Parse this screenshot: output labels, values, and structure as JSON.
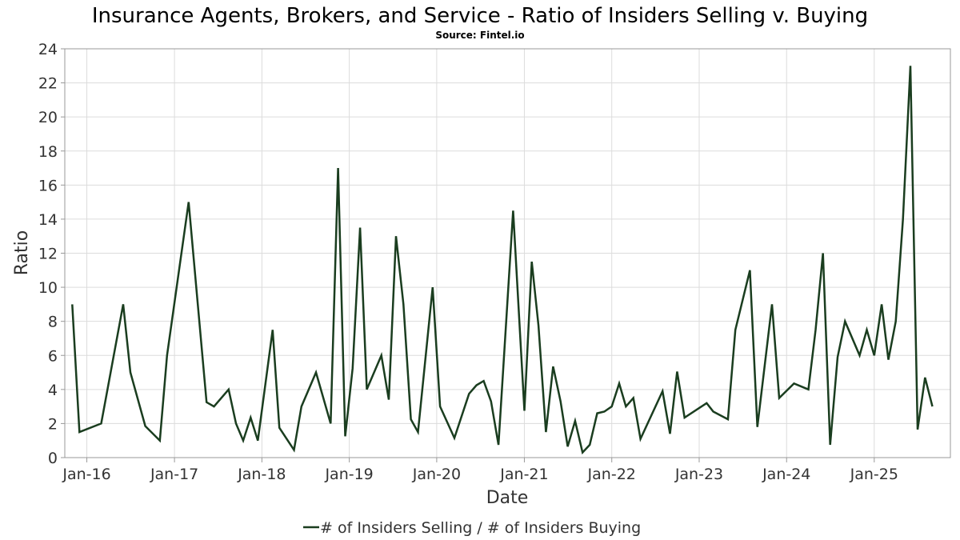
{
  "chart_data": {
    "type": "line",
    "title": "Insurance Agents, Brokers, and Service - Ratio of Insiders Selling v. Buying",
    "subtitle": "Source: Fintel.io",
    "xlabel": "Date",
    "ylabel": "Ratio",
    "ylim": [
      0,
      24
    ],
    "yticks": [
      0,
      2,
      4,
      6,
      8,
      10,
      12,
      14,
      16,
      18,
      20,
      22,
      24
    ],
    "xlim": [
      "2015-10-01",
      "2025-11-15"
    ],
    "xticks": [
      {
        "date": "2016-01-01",
        "label": "Jan-16"
      },
      {
        "date": "2017-01-01",
        "label": "Jan-17"
      },
      {
        "date": "2018-01-01",
        "label": "Jan-18"
      },
      {
        "date": "2019-01-01",
        "label": "Jan-19"
      },
      {
        "date": "2020-01-01",
        "label": "Jan-20"
      },
      {
        "date": "2021-01-01",
        "label": "Jan-21"
      },
      {
        "date": "2022-01-01",
        "label": "Jan-22"
      },
      {
        "date": "2023-01-01",
        "label": "Jan-23"
      },
      {
        "date": "2024-01-01",
        "label": "Jan-24"
      },
      {
        "date": "2025-01-01",
        "label": "Jan-25"
      }
    ],
    "grid": true,
    "legend_position": "bottom",
    "series": [
      {
        "name": "# of Insiders Selling / # of Insiders Buying",
        "color": "#1a3d1f",
        "points": [
          [
            "2015-11-01",
            9.0
          ],
          [
            "2015-12-01",
            1.5
          ],
          [
            "2016-03-01",
            2.0
          ],
          [
            "2016-06-01",
            9.0
          ],
          [
            "2016-07-01",
            5.0
          ],
          [
            "2016-09-01",
            1.85
          ],
          [
            "2016-11-01",
            1.0
          ],
          [
            "2016-12-01",
            6.0
          ],
          [
            "2017-03-01",
            15.0
          ],
          [
            "2017-05-15",
            3.25
          ],
          [
            "2017-06-15",
            3.0
          ],
          [
            "2017-08-15",
            4.0
          ],
          [
            "2017-09-15",
            2.0
          ],
          [
            "2017-10-15",
            1.0
          ],
          [
            "2017-11-15",
            2.35
          ],
          [
            "2017-12-15",
            1.0
          ],
          [
            "2018-02-15",
            7.5
          ],
          [
            "2018-03-15",
            1.75
          ],
          [
            "2018-05-15",
            0.45
          ],
          [
            "2018-06-15",
            3.0
          ],
          [
            "2018-08-15",
            5.0
          ],
          [
            "2018-10-15",
            2.0
          ],
          [
            "2018-11-15",
            17.0
          ],
          [
            "2018-12-15",
            1.25
          ],
          [
            "2019-01-15",
            5.25
          ],
          [
            "2019-02-15",
            13.5
          ],
          [
            "2019-03-15",
            4.0
          ],
          [
            "2019-05-15",
            6.0
          ],
          [
            "2019-06-15",
            3.4
          ],
          [
            "2019-07-15",
            13.0
          ],
          [
            "2019-08-15",
            9.0
          ],
          [
            "2019-09-15",
            2.25
          ],
          [
            "2019-10-15",
            1.5
          ],
          [
            "2019-12-15",
            10.0
          ],
          [
            "2020-01-15",
            3.0
          ],
          [
            "2020-03-15",
            1.15
          ],
          [
            "2020-05-15",
            3.75
          ],
          [
            "2020-06-15",
            4.25
          ],
          [
            "2020-07-15",
            4.5
          ],
          [
            "2020-08-15",
            3.3
          ],
          [
            "2020-09-15",
            0.75
          ],
          [
            "2020-11-15",
            14.5
          ],
          [
            "2021-01-01",
            2.75
          ],
          [
            "2021-02-01",
            11.5
          ],
          [
            "2021-03-01",
            7.75
          ],
          [
            "2021-04-01",
            1.5
          ],
          [
            "2021-05-01",
            5.35
          ],
          [
            "2021-06-01",
            3.3
          ],
          [
            "2021-07-01",
            0.65
          ],
          [
            "2021-08-01",
            2.15
          ],
          [
            "2021-09-01",
            0.3
          ],
          [
            "2021-10-01",
            0.75
          ],
          [
            "2021-11-01",
            2.6
          ],
          [
            "2021-12-01",
            2.7
          ],
          [
            "2022-01-01",
            3.0
          ],
          [
            "2022-02-01",
            4.35
          ],
          [
            "2022-03-01",
            3.0
          ],
          [
            "2022-04-01",
            3.5
          ],
          [
            "2022-05-01",
            1.1
          ],
          [
            "2022-08-01",
            3.9
          ],
          [
            "2022-09-01",
            1.4
          ],
          [
            "2022-10-01",
            5.05
          ],
          [
            "2022-11-01",
            2.35
          ],
          [
            "2023-02-01",
            3.2
          ],
          [
            "2023-03-01",
            2.7
          ],
          [
            "2023-05-01",
            2.25
          ],
          [
            "2023-06-01",
            7.5
          ],
          [
            "2023-08-01",
            11.0
          ],
          [
            "2023-09-01",
            1.8
          ],
          [
            "2023-11-01",
            9.0
          ],
          [
            "2023-12-01",
            3.5
          ],
          [
            "2024-02-01",
            4.35
          ],
          [
            "2024-04-01",
            4.0
          ],
          [
            "2024-05-01",
            7.5
          ],
          [
            "2024-06-01",
            12.0
          ],
          [
            "2024-07-01",
            0.75
          ],
          [
            "2024-08-01",
            5.9
          ],
          [
            "2024-09-01",
            8.0
          ],
          [
            "2024-11-01",
            6.0
          ],
          [
            "2024-12-01",
            7.5
          ],
          [
            "2025-01-01",
            6.0
          ],
          [
            "2025-02-01",
            9.0
          ],
          [
            "2025-03-01",
            5.75
          ],
          [
            "2025-04-01",
            8.0
          ],
          [
            "2025-05-01",
            14.0
          ],
          [
            "2025-06-01",
            23.0
          ],
          [
            "2025-07-01",
            1.65
          ],
          [
            "2025-08-01",
            4.7
          ],
          [
            "2025-09-01",
            3.0
          ]
        ]
      }
    ]
  }
}
